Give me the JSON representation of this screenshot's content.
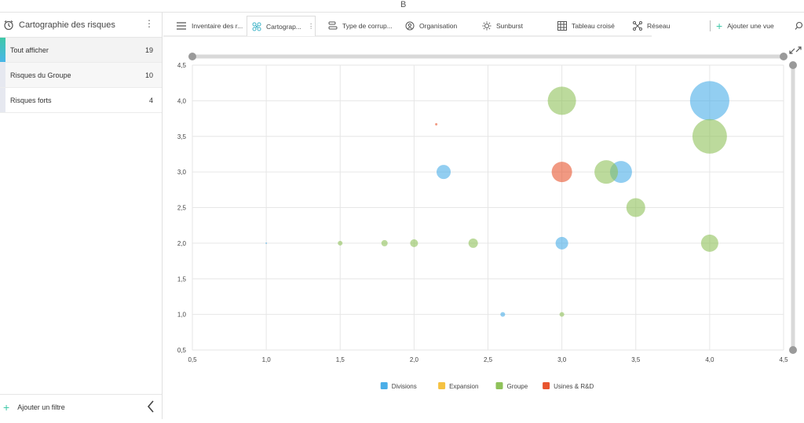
{
  "window": {
    "title_letter": "B"
  },
  "sidebar": {
    "title": "Cartographie des risques",
    "items": [
      {
        "label": "Tout afficher",
        "count": "19"
      },
      {
        "label": "Risques du Groupe",
        "count": "10"
      },
      {
        "label": "Risques forts",
        "count": "4"
      }
    ],
    "footer_label": "Ajouter un filtre"
  },
  "tabs": [
    {
      "label": "Inventaire des r...",
      "icon": "list-icon"
    },
    {
      "label": "Cartograp...",
      "icon": "bubble-map-icon",
      "active": true
    },
    {
      "label": "Type de corrup...",
      "icon": "bar-type-icon"
    },
    {
      "label": "Organisation",
      "icon": "organisation-icon"
    },
    {
      "label": "Sunburst",
      "icon": "sunburst-icon"
    },
    {
      "label": "Tableau croisé",
      "icon": "grid-icon"
    },
    {
      "label": "Réseau",
      "icon": "network-icon"
    }
  ],
  "add_view_label": "Ajouter une vue",
  "chart_data": {
    "type": "scatter",
    "subtype": "bubble",
    "xlim": [
      0.5,
      4.5
    ],
    "ylim": [
      0.5,
      4.5
    ],
    "xticks": [
      "0,5",
      "1,0",
      "1,5",
      "2,0",
      "2,5",
      "3,0",
      "3,5",
      "4,0",
      "4,5"
    ],
    "yticks": [
      "0,5",
      "1,0",
      "1,5",
      "2,0",
      "2,5",
      "3,0",
      "3,5",
      "4,0",
      "4,5"
    ],
    "grid": true,
    "legend": "bottom",
    "series": [
      {
        "name": "Divisions",
        "color": "#4aaee8",
        "points": [
          {
            "x": 1.0,
            "y": 2.0,
            "r": 1
          },
          {
            "x": 2.2,
            "y": 3.0,
            "r": 9
          },
          {
            "x": 2.6,
            "y": 1.0,
            "r": 3
          },
          {
            "x": 3.0,
            "y": 2.0,
            "r": 8
          },
          {
            "x": 3.4,
            "y": 3.0,
            "r": 14
          },
          {
            "x": 4.0,
            "y": 4.0,
            "r": 25
          }
        ]
      },
      {
        "name": "Expansion",
        "color": "#f5c242",
        "points": []
      },
      {
        "name": "Groupe",
        "color": "#8fc25a",
        "points": [
          {
            "x": 1.5,
            "y": 2.0,
            "r": 3
          },
          {
            "x": 1.8,
            "y": 2.0,
            "r": 4
          },
          {
            "x": 2.0,
            "y": 2.0,
            "r": 5
          },
          {
            "x": 2.4,
            "y": 2.0,
            "r": 6
          },
          {
            "x": 3.0,
            "y": 1.0,
            "r": 3
          },
          {
            "x": 3.0,
            "y": 4.0,
            "r": 18
          },
          {
            "x": 3.3,
            "y": 3.0,
            "r": 15
          },
          {
            "x": 3.5,
            "y": 2.5,
            "r": 12
          },
          {
            "x": 4.0,
            "y": 3.5,
            "r": 22
          },
          {
            "x": 4.0,
            "y": 2.0,
            "r": 11
          }
        ]
      },
      {
        "name": "Usines & R&D",
        "color": "#e8552e",
        "points": [
          {
            "x": 2.15,
            "y": 3.67,
            "r": 1.5
          },
          {
            "x": 3.0,
            "y": 3.0,
            "r": 13
          }
        ]
      }
    ]
  }
}
